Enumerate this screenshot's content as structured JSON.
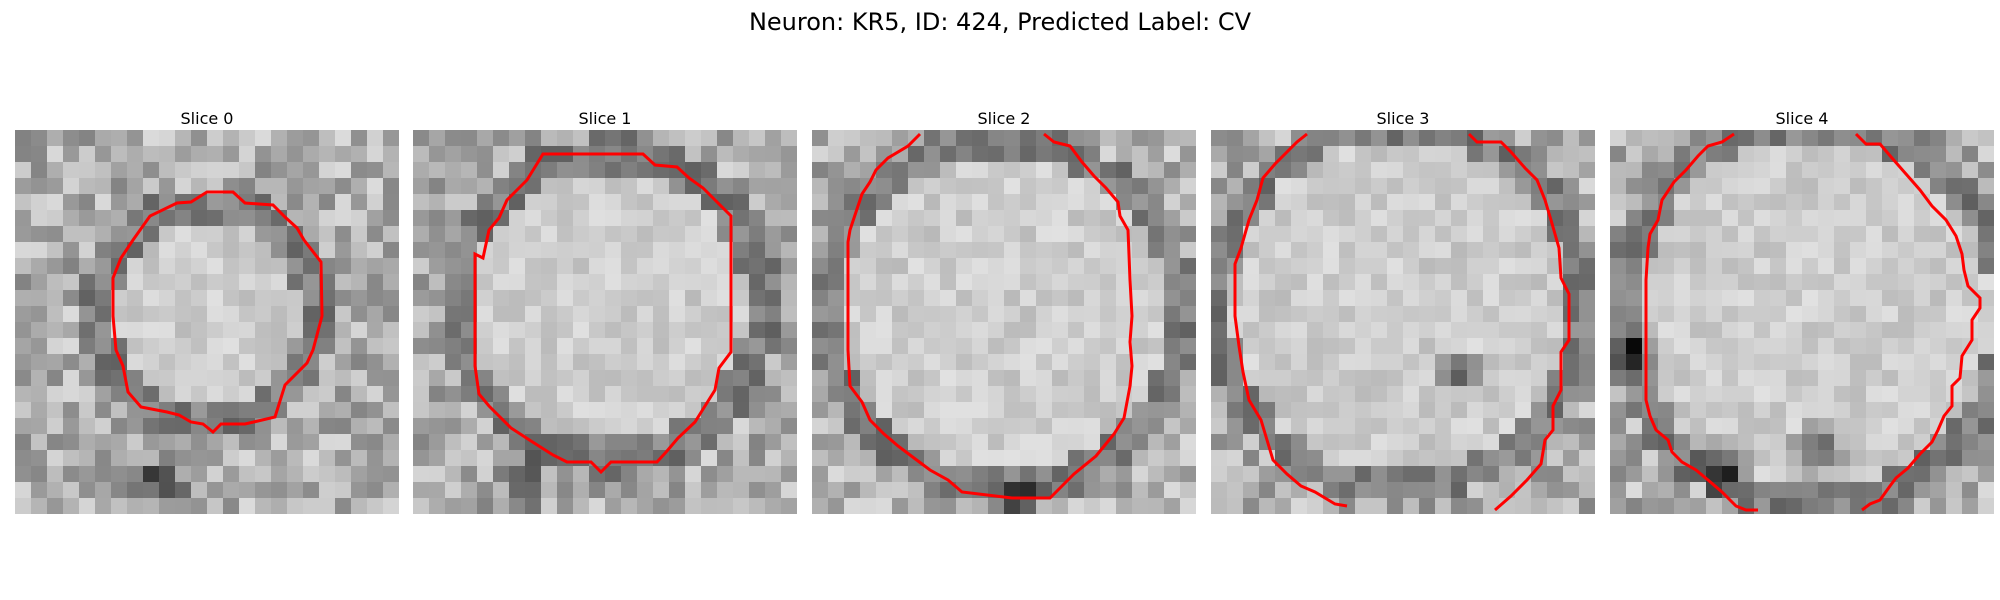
{
  "figure": {
    "title": "Neuron: KR5, ID: 424, Predicted Label: CV"
  },
  "panels": [
    {
      "title": "Slice 0"
    },
    {
      "title": "Slice 1"
    },
    {
      "title": "Slice 2"
    },
    {
      "title": "Slice 3"
    },
    {
      "title": "Slice 4"
    }
  ],
  "colors": {
    "contour": "#ff0000",
    "background": "#ffffff"
  }
}
